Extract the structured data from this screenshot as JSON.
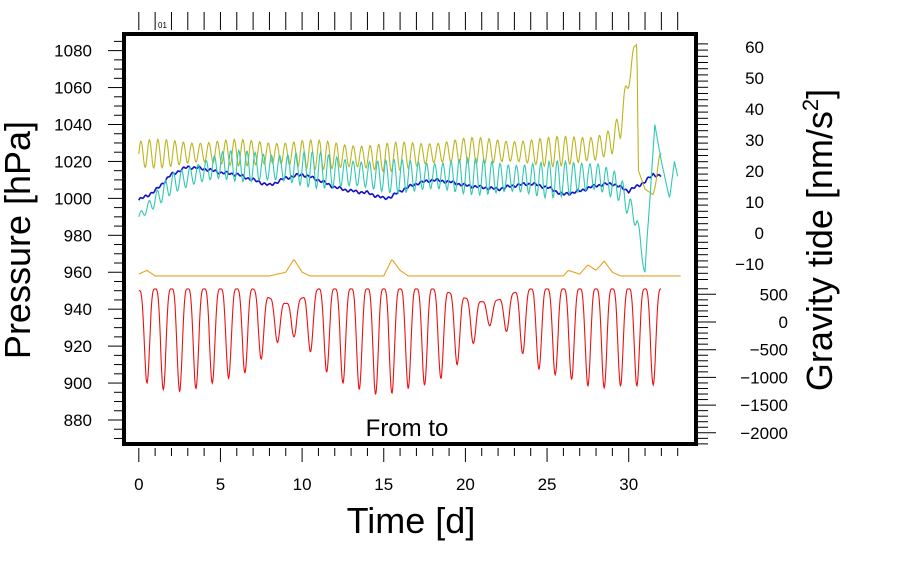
{
  "chart_data": {
    "type": "line",
    "title": "",
    "top_tag": "01",
    "annotation": "From  to",
    "xlabel": "Time [d]",
    "ylabel": "Pressure [hPa]",
    "y2label_base": "Gravity tide [nm/s",
    "y2label_sup": "2",
    "y2label_end": "]",
    "xlim": [
      -0.8,
      33.6
    ],
    "ylim": [
      867,
      1089
    ],
    "xticks": [
      0,
      5,
      10,
      15,
      20,
      25,
      30
    ],
    "yticks": [
      880,
      900,
      920,
      940,
      960,
      980,
      1000,
      1020,
      1040,
      1060,
      1080
    ],
    "y2_upper_ticks": [
      -10,
      0,
      10,
      20,
      30,
      40,
      50,
      60
    ],
    "y2_lower_ticks": [
      -2000,
      -1500,
      -1000,
      -500,
      0,
      500
    ],
    "grid": false,
    "legend": "none",
    "colors": {
      "pressure": "#1010c8",
      "gravity_tide_yellow": "#bcb41c",
      "gravity_tide_cyan": "#30c8b4",
      "orange_trace": "#e8a020",
      "red_trace": "#ee1010"
    },
    "series": [
      {
        "key": "pressure",
        "x": [
          0,
          1,
          2,
          3,
          4,
          5,
          6,
          7,
          8,
          9,
          10,
          11,
          12,
          13,
          14,
          15,
          15.5,
          16,
          17,
          18,
          19,
          20,
          21,
          22,
          23,
          24,
          25,
          26,
          27,
          28,
          29,
          30,
          31,
          31.5,
          32
        ],
        "values": [
          999,
          1004,
          1013,
          1017,
          1016,
          1014,
          1013,
          1010,
          1007,
          1011,
          1013,
          1010,
          1006,
          1004,
          1003,
          1000,
          1001,
          1004,
          1008,
          1010,
          1009,
          1007,
          1006,
          1005,
          1007,
          1008,
          1006,
          1002,
          1004,
          1007,
          1008,
          1004,
          1009,
          1013,
          1012
        ]
      },
      {
        "key": "gravity_tide_yellow",
        "x": [
          0,
          5,
          10,
          15,
          20,
          25,
          28,
          29,
          29.5,
          30,
          30.5,
          30.6,
          31,
          31.5,
          32
        ],
        "mid": [
          1024,
          1025,
          1024,
          1022,
          1026,
          1025,
          1027,
          1031,
          1040,
          1065,
          1086,
          1015,
          1005,
          1002,
          1025
        ],
        "amp": [
          8,
          7,
          8,
          8,
          7,
          8,
          9,
          8,
          8,
          5,
          3,
          0,
          0,
          0,
          6
        ],
        "period": 0.52
      },
      {
        "key": "gravity_tide_cyan",
        "x": [
          0,
          2,
          5,
          10,
          15,
          20,
          25,
          28,
          29,
          29.5,
          30,
          30.5,
          31,
          31.3,
          31.6,
          32,
          32.5,
          32.8,
          33
        ],
        "mid": [
          990,
          1008,
          1018,
          1016,
          1012,
          1012,
          1010,
          1012,
          1008,
          1005,
          996,
          988,
          960,
          1000,
          1040,
          1020,
          1000,
          1020,
          1012
        ],
        "amp": [
          2,
          6,
          8,
          10,
          9,
          10,
          10,
          10,
          9,
          7,
          6,
          4,
          3,
          0,
          0,
          0,
          0,
          0,
          0
        ],
        "period": 0.5
      },
      {
        "key": "orange_trace",
        "x": [
          0,
          0.5,
          1,
          8,
          9,
          9.5,
          10,
          10.5,
          15,
          15.5,
          16,
          16.5,
          26,
          26.3,
          27,
          27.5,
          28,
          28.5,
          29,
          29.5,
          30,
          33.2
        ],
        "values": [
          959,
          961,
          958,
          958,
          960,
          967,
          960,
          958,
          958,
          967,
          961,
          958,
          958,
          961,
          959,
          964,
          961,
          966,
          960,
          958,
          958,
          958
        ]
      },
      {
        "key": "red_trace",
        "x": [
          0,
          1,
          2,
          3,
          4,
          5,
          6,
          7,
          8,
          9,
          10,
          11,
          12,
          13,
          14,
          15,
          16,
          17,
          18,
          19,
          20,
          21,
          22,
          23,
          24,
          25,
          26,
          27,
          28,
          29,
          30,
          31,
          32
        ],
        "min": [
          902,
          898,
          895,
          896,
          898,
          902,
          903,
          908,
          918,
          926,
          924,
          910,
          902,
          898,
          895,
          893,
          896,
          898,
          900,
          905,
          915,
          928,
          934,
          922,
          910,
          905,
          904,
          900,
          897,
          898,
          899,
          898,
          900
        ],
        "max": [
          950,
          951,
          951,
          951,
          951,
          951,
          951,
          951,
          946,
          943,
          946,
          951,
          951,
          951,
          951,
          951,
          951,
          951,
          951,
          949,
          946,
          944,
          945,
          949,
          951,
          951,
          951,
          951,
          951,
          951,
          951,
          951,
          951
        ],
        "period": 1.0
      }
    ]
  }
}
